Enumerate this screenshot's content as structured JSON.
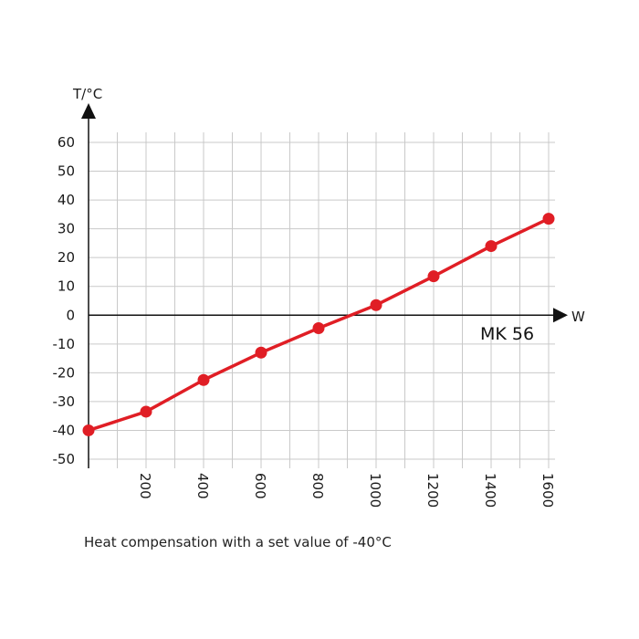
{
  "caption": "Heat compensation with a set value of -40°C",
  "chart_data": {
    "type": "line",
    "title": "",
    "xlabel": "W",
    "ylabel": "T/°C",
    "xlim": [
      0,
      1600
    ],
    "ylim": [
      -50,
      60
    ],
    "xticks": [
      200,
      400,
      600,
      800,
      1000,
      1200,
      1400,
      1600
    ],
    "yticks": [
      60,
      50,
      40,
      30,
      20,
      10,
      0,
      -10,
      -20,
      -30,
      -40,
      -50
    ],
    "grid": true,
    "series": [
      {
        "name": "MK 56",
        "color": "#e01e25",
        "x": [
          0,
          200,
          400,
          600,
          800,
          1000,
          1200,
          1400,
          1600
        ],
        "y": [
          -40,
          -33.5,
          -22.5,
          -13,
          -4.5,
          3.5,
          13.5,
          24,
          33.5
        ]
      }
    ]
  }
}
